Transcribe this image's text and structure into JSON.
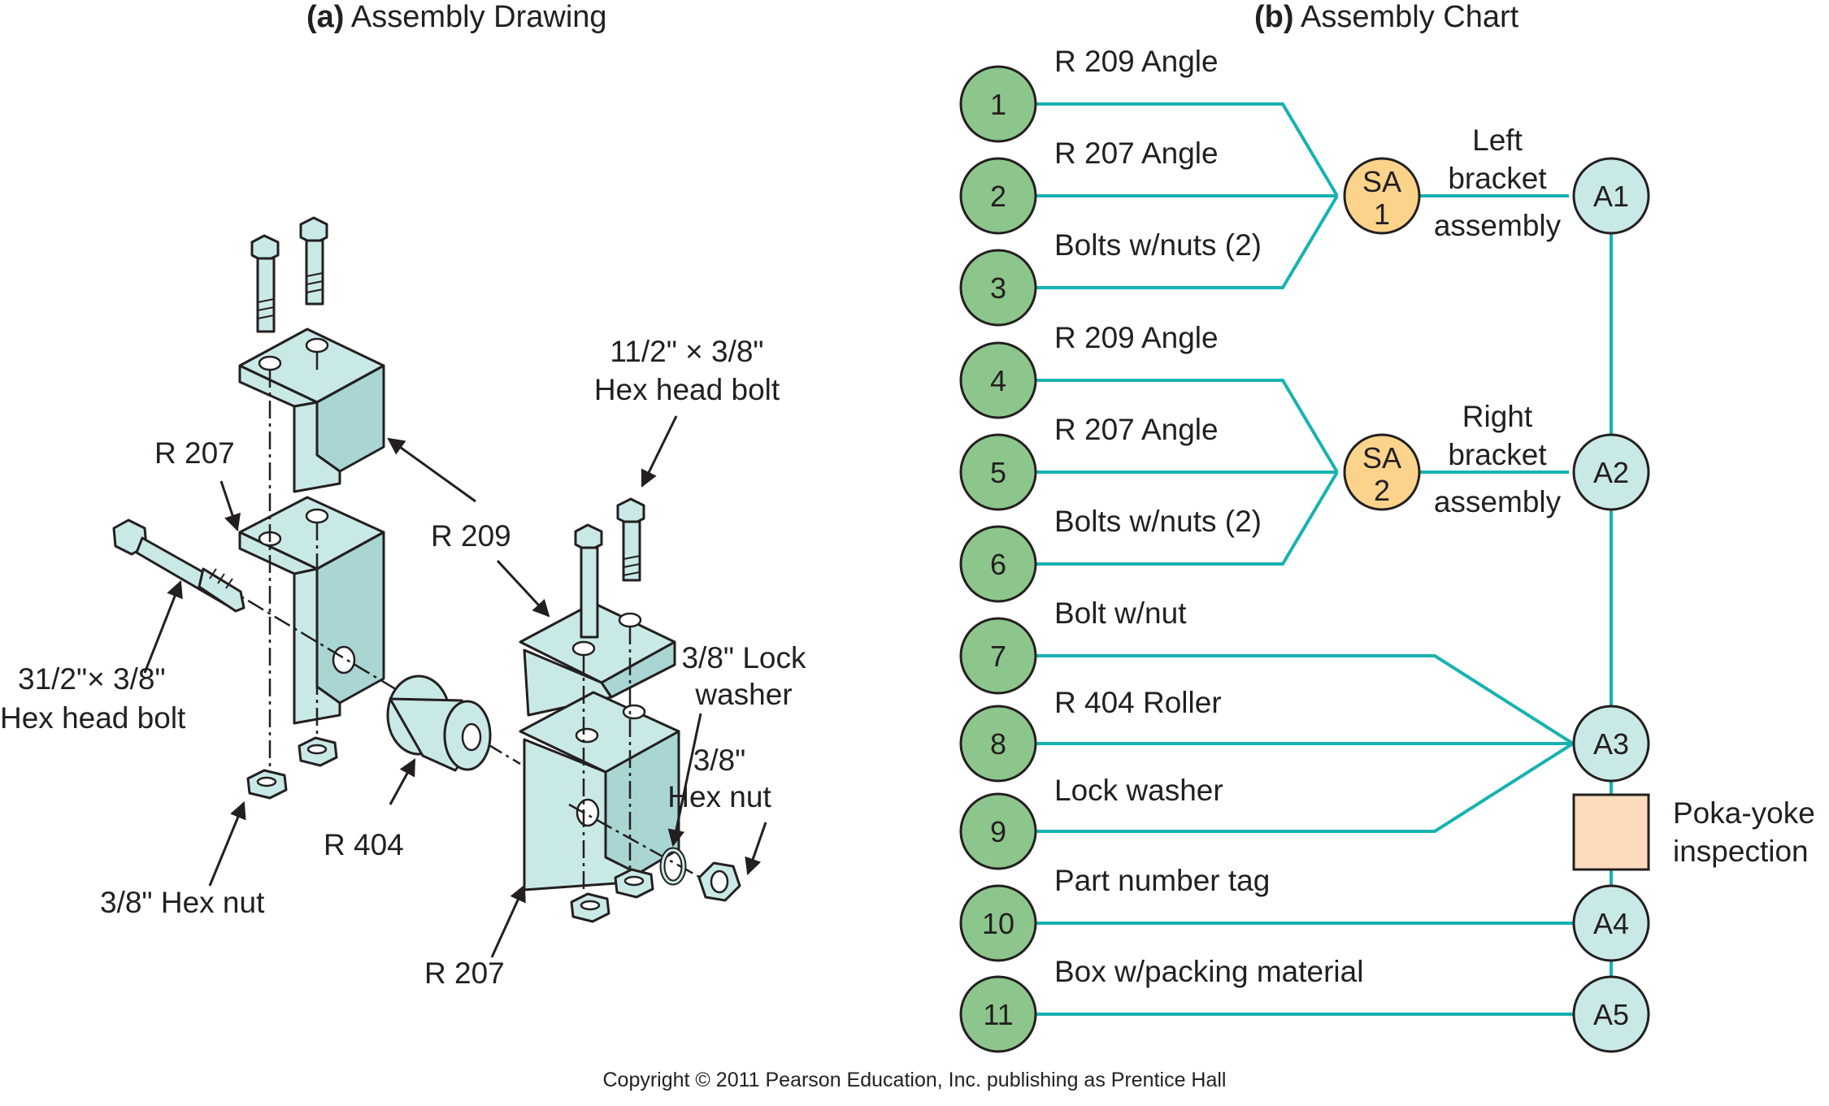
{
  "titles": {
    "a_prefix": "(a)",
    "a_text": " Assembly Drawing",
    "b_prefix": "(b)",
    "b_text": " Assembly Chart"
  },
  "drawing_labels": {
    "r207_top": "R 207",
    "r209_mid": "R 209",
    "bolt_long_line1": "31/2\"× 3/8\"",
    "bolt_long_line2": "Hex head bolt",
    "bolt_short_line1": "11/2\" × 3/8\"",
    "bolt_short_line2": "Hex head bolt",
    "lock_washer_line1": "3/8\" Lock",
    "lock_washer_line2": "washer",
    "hex_nut_right_line1": "3/8\"",
    "hex_nut_right_line2": "Hex nut",
    "hex_nut_left": "3/8\" Hex nut",
    "r404": "R 404",
    "r207_bottom": "R 207"
  },
  "parts": [
    {
      "num": "1",
      "label": "R 209 Angle"
    },
    {
      "num": "2",
      "label": "R 207 Angle"
    },
    {
      "num": "3",
      "label": "Bolts w/nuts (2)"
    },
    {
      "num": "4",
      "label": "R 209 Angle"
    },
    {
      "num": "5",
      "label": "R 207 Angle"
    },
    {
      "num": "6",
      "label": "Bolts w/nuts (2)"
    },
    {
      "num": "7",
      "label": "Bolt w/nut"
    },
    {
      "num": "8",
      "label": "R 404 Roller"
    },
    {
      "num": "9",
      "label": "Lock washer"
    },
    {
      "num": "10",
      "label": "Part number tag"
    },
    {
      "num": "11",
      "label": "Box w/packing material"
    }
  ],
  "subassemblies": [
    {
      "line1": "SA",
      "line2": "1",
      "desc1": "Left",
      "desc2": "bracket",
      "desc3": "assembly"
    },
    {
      "line1": "SA",
      "line2": "2",
      "desc1": "Right",
      "desc2": "bracket",
      "desc3": "assembly"
    }
  ],
  "assemblies": [
    "A1",
    "A2",
    "A3",
    "A4",
    "A5"
  ],
  "inspection": {
    "line1": "Poka-yoke",
    "line2": "inspection"
  },
  "copyright": "Copyright © 2011 Pearson Education, Inc. publishing as Prentice Hall",
  "colors": {
    "part_circle": "#8dc68c",
    "subassembly_circle": "#fbd38b",
    "assembly_circle": "#c9e9e7",
    "inspection_box": "#fcdcbc",
    "connector_line": "#17b2b0",
    "metal": "#c9e9e7"
  }
}
